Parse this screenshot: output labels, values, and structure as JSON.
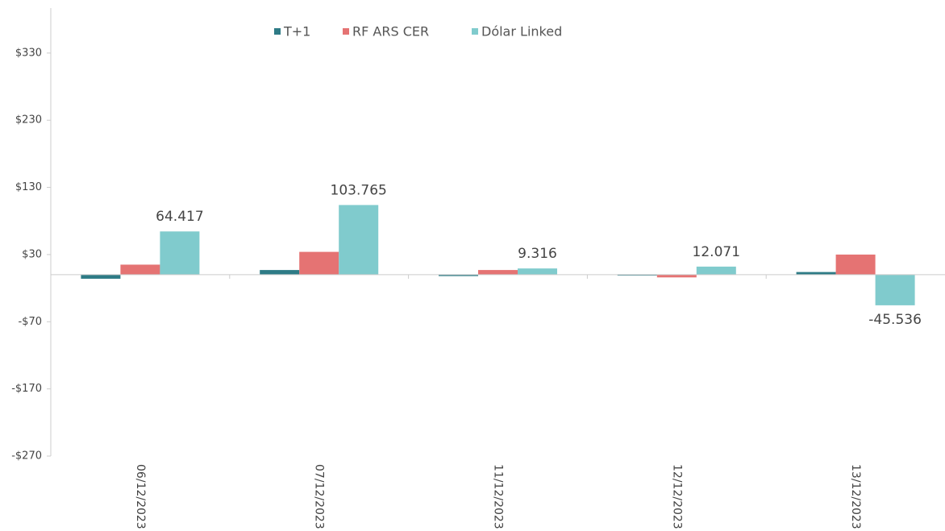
{
  "chart_data": {
    "type": "bar",
    "categories": [
      "06/12/2023",
      "07/12/2023",
      "11/12/2023",
      "12/12/2023",
      "13/12/2023"
    ],
    "series": [
      {
        "name": "T+1",
        "color": "#2e7b86",
        "values": [
          -6,
          7,
          -2,
          0,
          4
        ]
      },
      {
        "name": "RF ARS CER",
        "color": "#e57373",
        "values": [
          15,
          34,
          7,
          -4,
          30
        ]
      },
      {
        "name": "Dólar Linked",
        "color": "#80cbcd",
        "values": [
          64.417,
          103.765,
          9.316,
          12.071,
          -45.536
        ]
      }
    ],
    "labeled_series": 2,
    "ylim": [
      -270,
      397
    ],
    "yticks": [
      {
        "value": -270,
        "label": "-$270"
      },
      {
        "value": -170,
        "label": "-$170"
      },
      {
        "value": -70,
        "label": "-$70"
      },
      {
        "value": 30,
        "label": "$30"
      },
      {
        "value": 130,
        "label": "$130"
      },
      {
        "value": 230,
        "label": "$230"
      },
      {
        "value": 330,
        "label": "$330"
      }
    ],
    "grid": false,
    "legend": "top"
  }
}
